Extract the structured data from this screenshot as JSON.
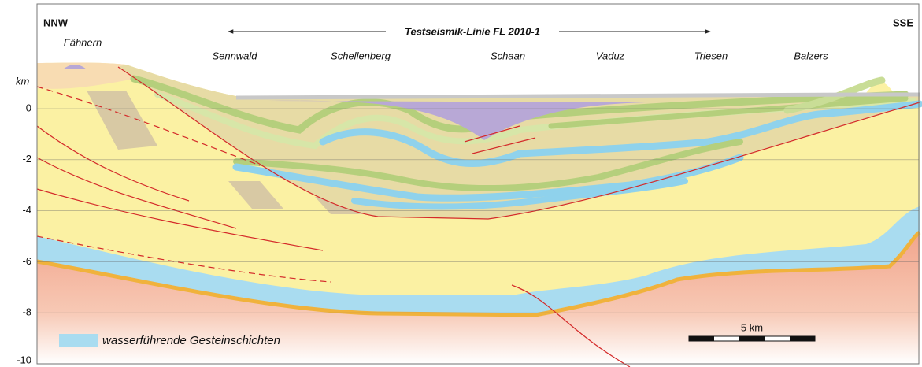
{
  "header": {
    "left": "NNW",
    "right": "SSE",
    "title": "Testseismik-Linie FL 2010-1"
  },
  "places": [
    "Fähnern",
    "Sennwald",
    "Schellenberg",
    "Schaan",
    "Vaduz",
    "Triesen",
    "Balzers"
  ],
  "axis": {
    "unit": "km",
    "ticks": [
      0,
      -2,
      -4,
      -6,
      -8,
      -10
    ]
  },
  "legend": {
    "label": "wasserführende Gesteinschichten"
  },
  "scale_bar": {
    "label": "5 km"
  }
}
